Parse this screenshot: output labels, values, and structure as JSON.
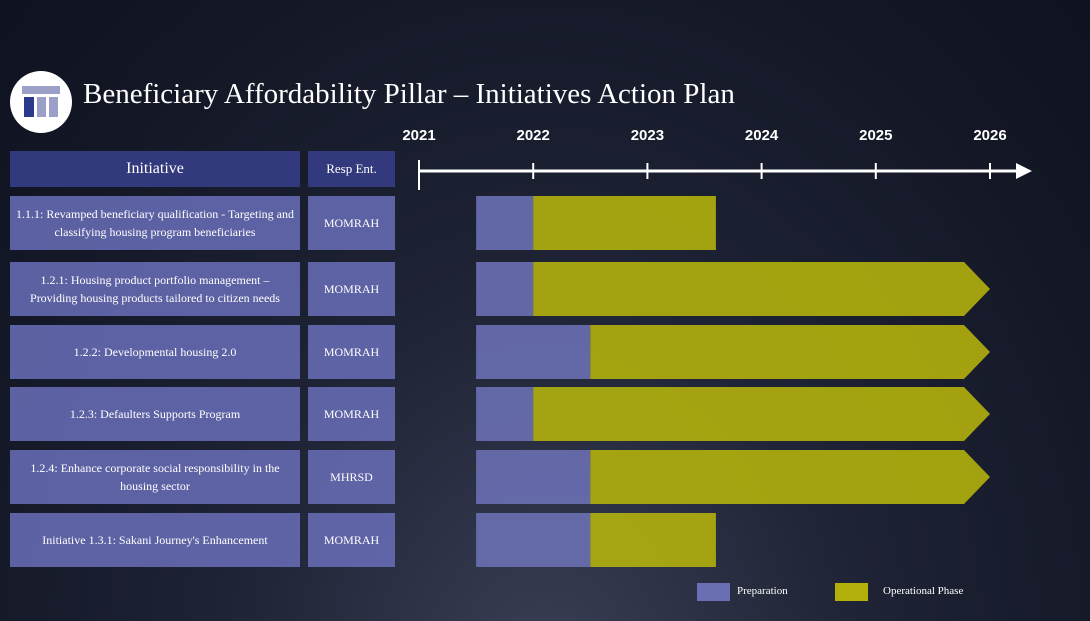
{
  "chart_data": {
    "type": "gantt",
    "title": "Beneficiary Affordability Pillar – Initiatives Action Plan",
    "columns": [
      "Initiative",
      "Resp Ent."
    ],
    "categories": [
      "1.1.1:  Revamped beneficiary qualification - Targeting and classifying housing program beneficiaries",
      "1.2.1: Housing product portfolio management – Providing housing products tailored to citizen needs",
      "1.2.2:  Developmental housing 2.0",
      "1.2.3: Defaulters Supports Program",
      "1.2.4: Enhance corporate social responsibility  in the housing sector",
      "Initiative  1.3.1: Sakani Journey's Enhancement"
    ],
    "entities": [
      "MOMRAH",
      "MOMRAH",
      "MOMRAH",
      "MOMRAH",
      "MHRSD",
      "MOMRAH"
    ],
    "xlim": [
      2021,
      2026
    ],
    "xticks": [
      2021,
      2022,
      2023,
      2024,
      2025,
      2026
    ],
    "series": [
      {
        "name": "Preparation",
        "color": "#6a6fb3",
        "start": [
          2021.5,
          2021.5,
          2021.5,
          2021.5,
          2021.5,
          2021.5
        ],
        "values": [
          2022,
          2022,
          2022.5,
          2022,
          2022.5,
          2022.5
        ]
      },
      {
        "name": "Operational Phase",
        "color": "#b3b00c",
        "start": [
          2022,
          2022,
          2022.5,
          2022,
          2022.5,
          2022.5
        ],
        "values": [
          2023.6,
          2026,
          2026,
          2026,
          2026,
          2023.6
        ]
      }
    ]
  }
}
